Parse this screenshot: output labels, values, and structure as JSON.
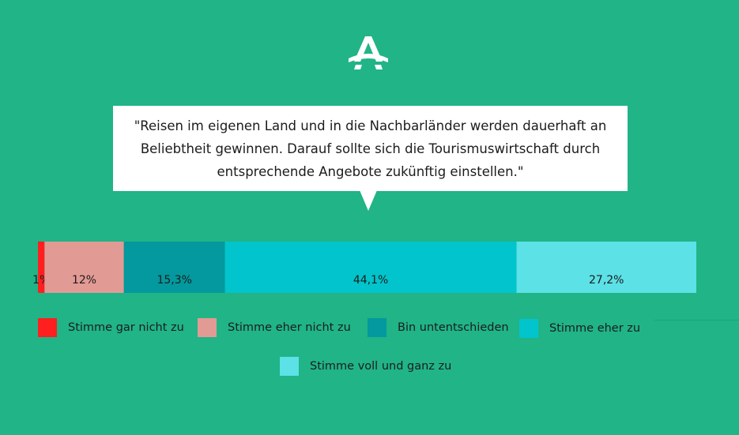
{
  "quote": "\"Reisen im eigenen Land und in die Nachbarländer werden dauerhaft an Beliebtheit gewinnen. Darauf sollte sich die Tourismuswirtschaft durch entsprechende Angebote zukünftig einstellen.\"",
  "colors": {
    "background": "#20b487",
    "gar_nicht": "#ff1f1f",
    "eher_nicht": "#e29a94",
    "unentschieden": "#03999e",
    "eher_zu": "#01c4cc",
    "voll_ganz": "#5ce1e6"
  },
  "chart_data": {
    "type": "bar",
    "orientation": "horizontal-stacked-100",
    "series": [
      {
        "name": "Stimme gar nicht zu",
        "value": 1,
        "label": "1%",
        "color": "#ff1f1f"
      },
      {
        "name": "Stimme eher nicht zu",
        "value": 12,
        "label": "12%",
        "color": "#e29a94"
      },
      {
        "name": "Bin untentschieden",
        "value": 15.3,
        "label": "15,3%",
        "color": "#03999e"
      },
      {
        "name": "Stimme eher zu",
        "value": 44.1,
        "label": "44,1%",
        "color": "#01c4cc"
      },
      {
        "name": "Stimme voll und ganz zu",
        "value": 27.2,
        "label": "27,2%",
        "color": "#5ce1e6"
      }
    ],
    "title": "",
    "xlabel": "",
    "ylabel": "",
    "legend_position": "bottom"
  },
  "legend": [
    {
      "label": "Stimme gar nicht zu",
      "color": "#ff1f1f"
    },
    {
      "label": "Stimme eher nicht zu",
      "color": "#e29a94"
    },
    {
      "label": "Bin untentschieden",
      "color": "#03999e"
    },
    {
      "label": "Stimme eher zu",
      "color": "#01c4cc"
    },
    {
      "label": "Stimme voll und ganz zu",
      "color": "#5ce1e6"
    }
  ]
}
